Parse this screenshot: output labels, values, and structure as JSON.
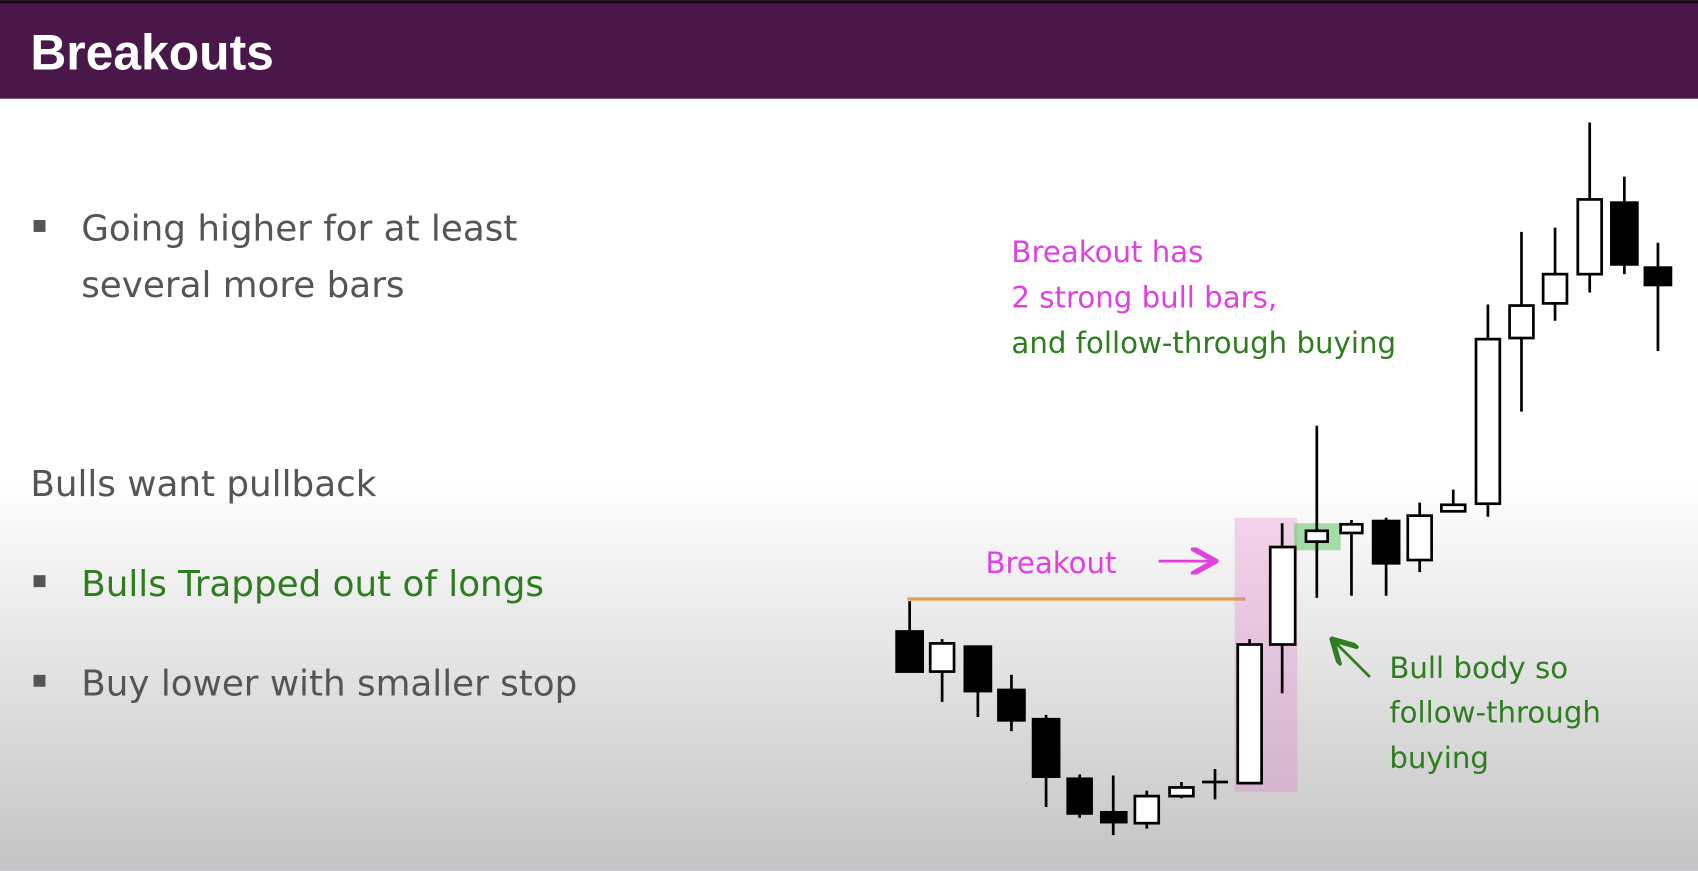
{
  "header": {
    "title": "Breakouts"
  },
  "bullets": [
    {
      "lines": [
        "Going higher for at least",
        "several more bars"
      ]
    },
    {
      "text": "Bulls want pullback"
    },
    {
      "text": "Bulls Trapped out of longs"
    },
    {
      "text": "Buy lower with smaller stop"
    }
  ],
  "annotations": {
    "breakout_has": [
      "Breakout has",
      "2 strong bull bars,",
      "and follow-through buying"
    ],
    "breakout": "Breakout",
    "bull_body": [
      "Bull body so",
      "follow-through",
      "buying"
    ]
  }
}
